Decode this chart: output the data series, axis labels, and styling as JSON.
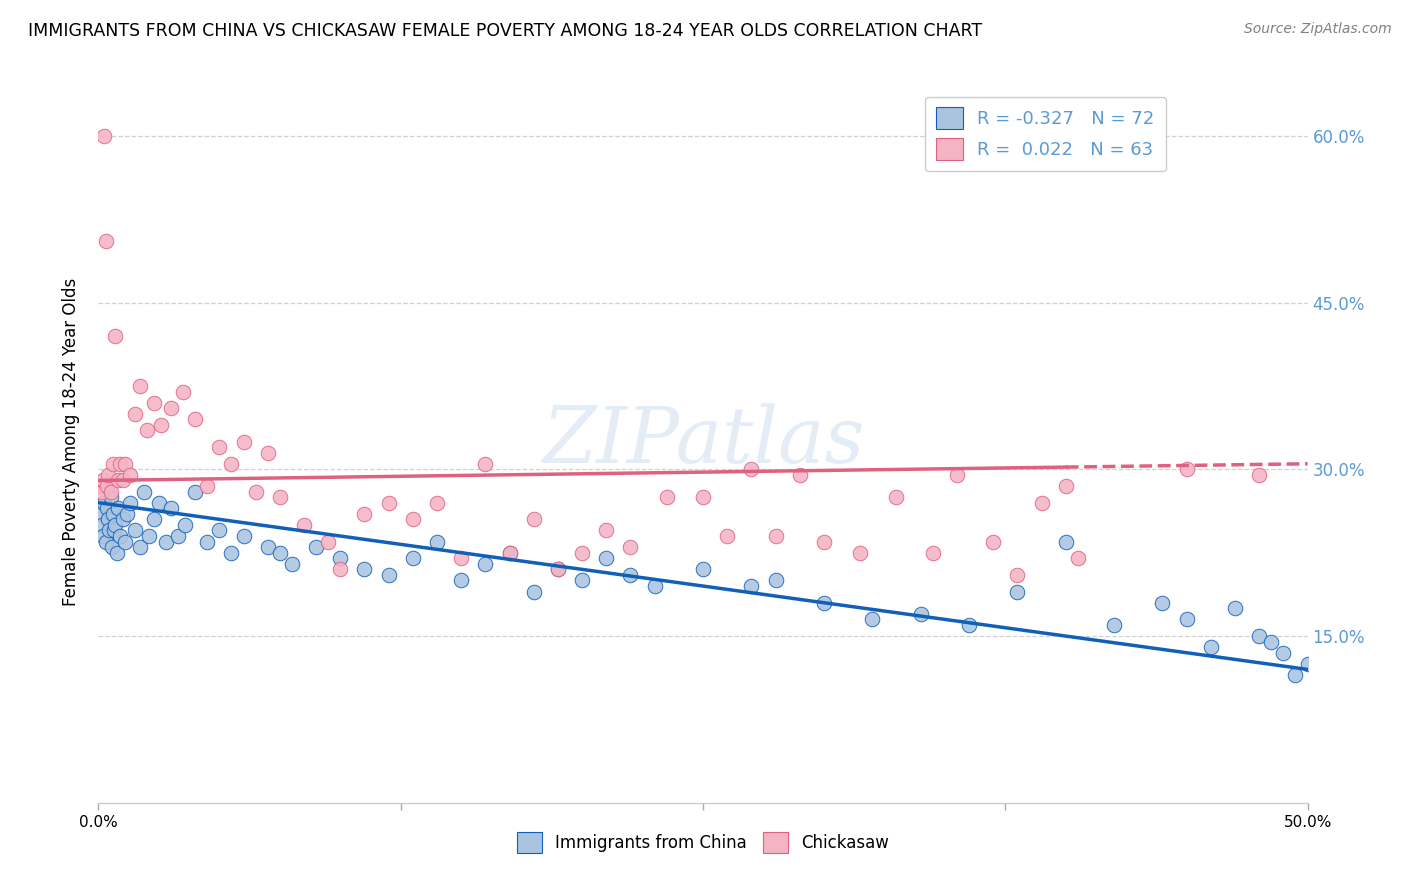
{
  "title": "IMMIGRANTS FROM CHINA VS CHICKASAW FEMALE POVERTY AMONG 18-24 YEAR OLDS CORRELATION CHART",
  "source": "Source: ZipAtlas.com",
  "ylabel": "Female Poverty Among 18-24 Year Olds",
  "y_ticks": [
    15.0,
    30.0,
    45.0,
    60.0
  ],
  "y_tick_labels": [
    "15.0%",
    "30.0%",
    "45.0%",
    "60.0%"
  ],
  "xlim": [
    0.0,
    50.0
  ],
  "ylim": [
    0.0,
    65.0
  ],
  "legend_1_r": "-0.327",
  "legend_1_n": "72",
  "legend_2_r": "0.022",
  "legend_2_n": "63",
  "series1_color": "#aac4e0",
  "series2_color": "#f4b4c4",
  "line1_color": "#1060b8",
  "line2_color": "#e06080",
  "background_color": "#ffffff",
  "grid_color": "#cccccc",
  "watermark": "ZIPatlas",
  "series1_name": "Immigrants from China",
  "series2_name": "Chickasaw",
  "axis_label_color": "#5b9bd5",
  "line1_start_y": 27.0,
  "line1_end_y": 12.0,
  "line2_start_y": 29.0,
  "line2_end_y": 30.5,
  "line2_solid_end_x": 40.0,
  "series1_x": [
    0.1,
    0.15,
    0.2,
    0.25,
    0.3,
    0.35,
    0.4,
    0.45,
    0.5,
    0.55,
    0.6,
    0.65,
    0.7,
    0.75,
    0.8,
    0.9,
    1.0,
    1.1,
    1.2,
    1.3,
    1.5,
    1.7,
    1.9,
    2.1,
    2.3,
    2.5,
    2.8,
    3.0,
    3.3,
    3.6,
    4.0,
    4.5,
    5.0,
    5.5,
    6.0,
    7.0,
    7.5,
    8.0,
    9.0,
    10.0,
    11.0,
    12.0,
    13.0,
    14.0,
    15.0,
    16.0,
    17.0,
    18.0,
    19.0,
    20.0,
    21.0,
    22.0,
    23.0,
    25.0,
    27.0,
    28.0,
    30.0,
    32.0,
    34.0,
    36.0,
    38.0,
    40.0,
    42.0,
    44.0,
    45.0,
    46.0,
    47.0,
    48.0,
    49.0,
    49.5,
    50.0,
    48.5
  ],
  "series1_y": [
    26.0,
    25.0,
    24.0,
    27.0,
    23.5,
    26.5,
    25.5,
    24.5,
    27.5,
    23.0,
    26.0,
    24.5,
    25.0,
    22.5,
    26.5,
    24.0,
    25.5,
    23.5,
    26.0,
    27.0,
    24.5,
    23.0,
    28.0,
    24.0,
    25.5,
    27.0,
    23.5,
    26.5,
    24.0,
    25.0,
    28.0,
    23.5,
    24.5,
    22.5,
    24.0,
    23.0,
    22.5,
    21.5,
    23.0,
    22.0,
    21.0,
    20.5,
    22.0,
    23.5,
    20.0,
    21.5,
    22.5,
    19.0,
    21.0,
    20.0,
    22.0,
    20.5,
    19.5,
    21.0,
    19.5,
    20.0,
    18.0,
    16.5,
    17.0,
    16.0,
    19.0,
    23.5,
    16.0,
    18.0,
    16.5,
    14.0,
    17.5,
    15.0,
    13.5,
    11.5,
    12.5,
    14.5
  ],
  "series2_x": [
    0.1,
    0.15,
    0.2,
    0.25,
    0.3,
    0.35,
    0.4,
    0.5,
    0.6,
    0.7,
    0.8,
    0.9,
    1.0,
    1.1,
    1.3,
    1.5,
    1.7,
    2.0,
    2.3,
    2.6,
    3.0,
    3.5,
    4.0,
    4.5,
    5.0,
    5.5,
    6.0,
    6.5,
    7.0,
    7.5,
    8.5,
    9.5,
    10.0,
    11.0,
    12.0,
    13.0,
    14.0,
    15.0,
    16.0,
    17.0,
    18.0,
    19.0,
    20.0,
    21.0,
    22.0,
    23.5,
    25.0,
    26.0,
    27.0,
    28.0,
    29.0,
    30.0,
    31.5,
    33.0,
    34.5,
    35.5,
    37.0,
    38.0,
    39.0,
    40.0,
    40.5,
    45.0,
    48.0
  ],
  "series2_y": [
    28.5,
    28.0,
    29.0,
    60.0,
    50.5,
    28.5,
    29.5,
    28.0,
    30.5,
    42.0,
    29.0,
    30.5,
    29.0,
    30.5,
    29.5,
    35.0,
    37.5,
    33.5,
    36.0,
    34.0,
    35.5,
    37.0,
    34.5,
    28.5,
    32.0,
    30.5,
    32.5,
    28.0,
    31.5,
    27.5,
    25.0,
    23.5,
    21.0,
    26.0,
    27.0,
    25.5,
    27.0,
    22.0,
    30.5,
    22.5,
    25.5,
    21.0,
    22.5,
    24.5,
    23.0,
    27.5,
    27.5,
    24.0,
    30.0,
    24.0,
    29.5,
    23.5,
    22.5,
    27.5,
    22.5,
    29.5,
    23.5,
    20.5,
    27.0,
    28.5,
    22.0,
    30.0,
    29.5
  ]
}
